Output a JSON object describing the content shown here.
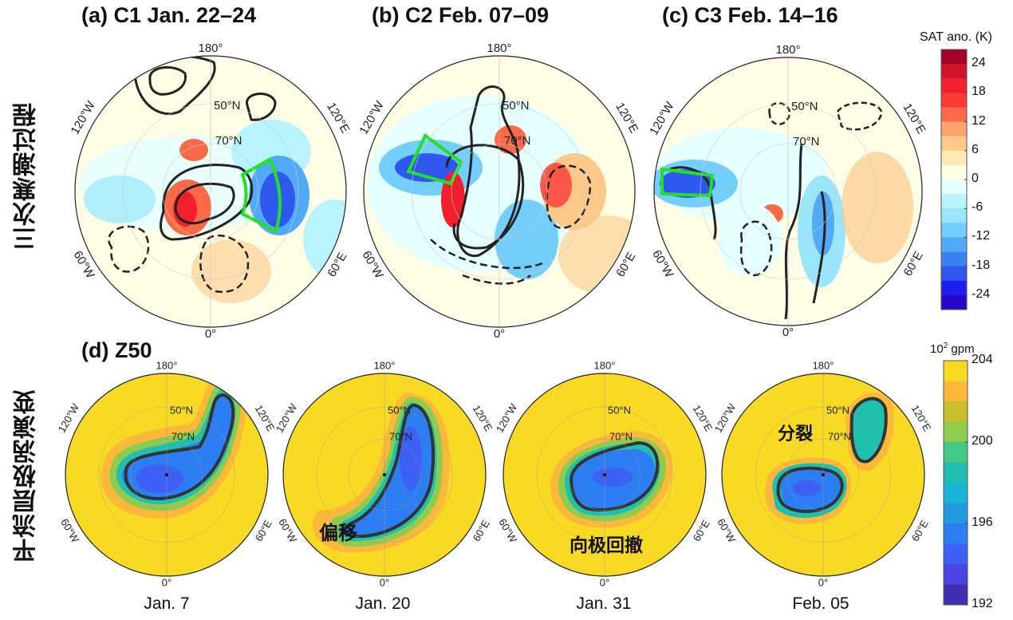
{
  "row_labels": [
    "三次寒潮过程",
    "平流层极涡演变"
  ],
  "sat_panels": [
    {
      "title": "(a) C1 Jan. 22–24"
    },
    {
      "title": "(b) C2 Feb. 07–09"
    },
    {
      "title": "(c) C3 Feb. 14–16"
    }
  ],
  "z50_title": "(d) Z50",
  "z50_panels": [
    {
      "date": "Jan. 7",
      "annotation": ""
    },
    {
      "date": "Jan. 20",
      "annotation": "偏移"
    },
    {
      "date": "Jan. 31",
      "annotation": "向极回撤"
    },
    {
      "date": "Feb. 05",
      "annotation": "分裂"
    }
  ],
  "map_labels": {
    "top": "180°",
    "bottom": "0°",
    "upper_left": "120°W",
    "upper_right": "120°E",
    "lower_left": "60°W",
    "lower_right": "60°E",
    "lat1": "50°N",
    "lat2": "70°N"
  },
  "chart_data": [
    {
      "type": "heatmap",
      "name": "SAT anomaly colorbar",
      "title": "SAT ano. (K)",
      "range": [
        -27,
        27
      ],
      "ticks": [
        "24",
        "18",
        "12",
        "6",
        "0",
        "-6",
        "-12",
        "-18",
        "-24"
      ],
      "tick_values": [
        24,
        18,
        12,
        6,
        0,
        -6,
        -12,
        -18,
        -24
      ],
      "colors": [
        "#a50026",
        "#d0142a",
        "#f2202d",
        "#fa3a35",
        "#fa6a48",
        "#fca46c",
        "#fdc98a",
        "#feeab5",
        "#fffde6",
        "#e6ffff",
        "#b8f3fe",
        "#98e5fc",
        "#73cffa",
        "#52aaf6",
        "#3a82f2",
        "#2f58ee",
        "#1f1ff0",
        "#2b06c8"
      ]
    },
    {
      "type": "heatmap",
      "name": "Z50 colorbar",
      "title_base": "10",
      "title_exp": "2",
      "title_unit": " gpm",
      "range": [
        192,
        204
      ],
      "ticks": [
        "204",
        "200",
        "196",
        "192"
      ],
      "tick_values": [
        204,
        200,
        196,
        192
      ],
      "colors": [
        "#f8da24",
        "#fbb83a",
        "#cbbe2c",
        "#8fcb4f",
        "#44c886",
        "#21bfae",
        "#18b4d6",
        "#229ae0",
        "#2c7ef2",
        "#3e60f5",
        "#4a44e2",
        "#3f2fb3"
      ]
    }
  ]
}
